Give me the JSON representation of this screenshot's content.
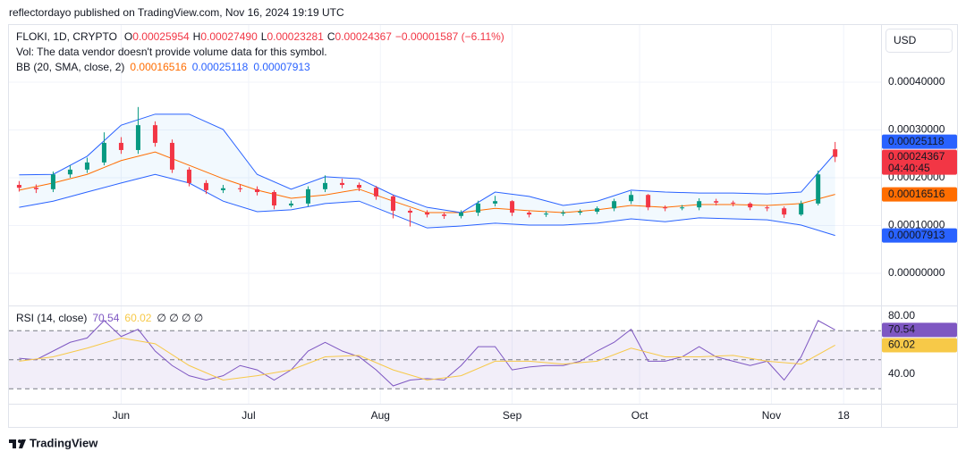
{
  "header": "reflectordayo published on TradingView.com, Nov 16, 2024 19:19 UTC",
  "currency_button": "USD",
  "footer": "TradingView",
  "chart_data": [
    {
      "type": "candlestick",
      "legend": {
        "symbol": "FLOKI, 1D, CRYPTO",
        "ohlc": [
          {
            "key": "O",
            "text": "0.00025954"
          },
          {
            "key": "H",
            "text": "0.00027490"
          },
          {
            "key": "L",
            "text": "0.00023281"
          },
          {
            "key": "C",
            "text": "0.00024367"
          }
        ],
        "change": "−0.00001587 (−6.11%)",
        "volume_note": "Vol: The data vendor doesn't provide volume data for this symbol.",
        "bb_title": "BB (20, SMA, close, 2)"
      },
      "countdown": "04:40:45",
      "up_color": "#089981",
      "down_color": "#f23645",
      "x": [
        2,
        6,
        10,
        14,
        18,
        22,
        26,
        30,
        34,
        38,
        42,
        46,
        50,
        54,
        58,
        62,
        66,
        70,
        74,
        78,
        82,
        86,
        90,
        94,
        98,
        102,
        106,
        110,
        114,
        118,
        122,
        126,
        130,
        134,
        138,
        142,
        146,
        150,
        154,
        158,
        162,
        166,
        170,
        174,
        178,
        182,
        186,
        190,
        194
      ],
      "open": [
        0.000185,
        0.000179,
        0.000176,
        0.000207,
        0.000217,
        0.000232,
        0.000273,
        0.000258,
        0.00031,
        0.000273,
        0.000217,
        0.000189,
        0.000174,
        0.000178,
        0.000176,
        0.00017,
        0.000142,
        0.000146,
        0.000176,
        0.000189,
        0.000185,
        0.000179,
        0.000161,
        0.000131,
        0.000127,
        0.000123,
        0.00012,
        0.000127,
        0.000146,
        0.000151,
        0.000127,
        0.000123,
        0.000125,
        0.000127,
        0.000129,
        0.000136,
        0.000151,
        0.000164,
        0.000138,
        0.000136,
        0.000138,
        0.000151,
        0.000148,
        0.000146,
        0.000138,
        0.000136,
        0.000123,
        0.000146,
        0.00025954
      ],
      "high": [
        0.000193,
        0.000186,
        0.000213,
        0.000226,
        0.000242,
        0.000295,
        0.000285,
        0.000348,
        0.000318,
        0.00028,
        0.000222,
        0.000195,
        0.000185,
        0.000186,
        0.000182,
        0.000174,
        0.000152,
        0.000182,
        0.000205,
        0.000198,
        0.00019,
        0.000183,
        0.000164,
        0.000136,
        0.000132,
        0.000128,
        0.000132,
        0.000152,
        0.000162,
        0.000153,
        0.00013,
        0.00013,
        0.000132,
        0.000134,
        0.00014,
        0.000156,
        0.000172,
        0.000166,
        0.000142,
        0.000143,
        0.000157,
        0.000156,
        0.000152,
        0.000149,
        0.000142,
        0.00014,
        0.000152,
        0.000215,
        0.0002749
      ],
      "low": [
        0.000171,
        0.000168,
        0.00017,
        0.0002,
        0.00021,
        0.000226,
        0.00025,
        0.00025,
        0.000265,
        0.00021,
        0.000182,
        0.000166,
        0.000168,
        0.00017,
        0.000163,
        0.000134,
        0.000138,
        0.00014,
        0.00017,
        0.000178,
        0.000172,
        0.000154,
        0.000115,
        9.8e-05,
        0.000117,
        0.000114,
        0.000115,
        0.00012,
        0.00014,
        0.00012,
        0.000117,
        0.000118,
        0.00012,
        0.000122,
        0.000124,
        0.00013,
        0.000145,
        0.000132,
        0.00013,
        0.000132,
        0.000132,
        0.000142,
        0.00014,
        0.000132,
        0.00013,
        0.000116,
        0.00012,
        0.000142,
        0.00023281
      ],
      "close": [
        0.000179,
        0.000176,
        0.000207,
        0.000217,
        0.000232,
        0.000273,
        0.000258,
        0.00031,
        0.000273,
        0.000217,
        0.000189,
        0.000174,
        0.000178,
        0.000176,
        0.00017,
        0.000142,
        0.000146,
        0.000176,
        0.000189,
        0.000185,
        0.000179,
        0.000161,
        0.000131,
        0.000127,
        0.000123,
        0.00012,
        0.000127,
        0.000146,
        0.000151,
        0.000127,
        0.000123,
        0.000125,
        0.000127,
        0.000129,
        0.000136,
        0.000151,
        0.000164,
        0.000138,
        0.000136,
        0.000138,
        0.000151,
        0.000148,
        0.000146,
        0.000138,
        0.000136,
        0.000123,
        0.000146,
        0.000207,
        0.00024367
      ],
      "bands": [
        {
          "color": "#ff6d00",
          "x": [
            2,
            10,
            18,
            26,
            34,
            42,
            50,
            58,
            66,
            74,
            82,
            90,
            98,
            106,
            114,
            122,
            130,
            138,
            146,
            154,
            162,
            170,
            178,
            186,
            194
          ],
          "values": [
            0.000174,
            0.000189,
            0.000207,
            0.000236,
            0.000254,
            0.000226,
            0.000198,
            0.000174,
            0.000157,
            0.000164,
            0.000176,
            0.000151,
            0.000127,
            0.000127,
            0.000136,
            0.000131,
            0.000127,
            0.000133,
            0.000142,
            0.000138,
            0.000144,
            0.000144,
            0.000142,
            0.000146,
            0.00016516
          ]
        },
        {
          "color": "#2962ff",
          "x": [
            2,
            10,
            18,
            26,
            34,
            42,
            50,
            58,
            66,
            74,
            82,
            90,
            98,
            106,
            114,
            122,
            130,
            138,
            146,
            154,
            162,
            170,
            178,
            186,
            194
          ],
          "values": [
            0.000206,
            0.000207,
            0.000245,
            0.00031,
            0.000333,
            0.000333,
            0.000301,
            0.000207,
            0.000176,
            0.000202,
            0.000198,
            0.000164,
            0.000138,
            0.000127,
            0.00017,
            0.000161,
            0.000142,
            0.000151,
            0.000174,
            0.00017,
            0.000168,
            0.000168,
            0.000166,
            0.00017,
            0.00025118
          ]
        },
        {
          "color": "#2962ff",
          "x": [
            2,
            10,
            18,
            26,
            34,
            42,
            50,
            58,
            66,
            74,
            82,
            90,
            98,
            106,
            114,
            122,
            130,
            138,
            146,
            154,
            162,
            170,
            178,
            186,
            194
          ],
          "values": [
            0.000138,
            0.000151,
            0.00017,
            0.000189,
            0.000207,
            0.000189,
            0.000151,
            0.000129,
            0.000133,
            0.000146,
            0.000151,
            0.000123,
            9.5e-05,
            9.9e-05,
            0.000105,
            0.000101,
            0.000101,
            0.000105,
            0.000114,
            0.000108,
            0.000116,
            0.000114,
            0.000112,
            0.000101,
            7.913e-05
          ]
        }
      ],
      "band_fill": "rgba(33,150,243,0.06)",
      "xlim": [
        -0.4,
        204.8
      ],
      "xticks": [
        {
          "value": 26,
          "label": "Jun"
        },
        {
          "value": 56,
          "label": "Jul"
        },
        {
          "value": 87,
          "label": "Aug"
        },
        {
          "value": 118,
          "label": "Sep"
        },
        {
          "value": 148,
          "label": "Oct"
        },
        {
          "value": 179,
          "label": "Nov"
        },
        {
          "value": 196,
          "label": "18"
        }
      ],
      "ylim": [
        -6.73e-05,
        0.0005196
      ],
      "yticks": [
        {
          "value": 0.0004,
          "label": "0.00040000"
        },
        {
          "value": 0.0003,
          "label": "0.00030000"
        },
        {
          "value": 0.0002,
          "label": "0.00020000"
        },
        {
          "value": 0.0001,
          "label": "0.00010000"
        },
        {
          "value": 0,
          "label": "0.00000000"
        }
      ],
      "grid": true
    },
    {
      "type": "line",
      "title": "RSI (14, close)",
      "extra": "∅ ∅ ∅ ∅",
      "series": [
        {
          "color": "#7e57c2",
          "x": [
            2,
            6,
            10,
            14,
            18,
            22,
            26,
            30,
            34,
            38,
            42,
            46,
            50,
            54,
            58,
            62,
            66,
            70,
            74,
            78,
            82,
            86,
            90,
            94,
            98,
            102,
            106,
            110,
            114,
            118,
            122,
            126,
            130,
            134,
            138,
            142,
            146,
            150,
            154,
            158,
            162,
            166,
            170,
            174,
            178,
            182,
            186,
            190,
            194
          ],
          "values": [
            51,
            50,
            56,
            62,
            65,
            77,
            66,
            71,
            56,
            46,
            39,
            36,
            39,
            46,
            43,
            36,
            43,
            56,
            62,
            56,
            52,
            43,
            32,
            36,
            37,
            36,
            46,
            59,
            59,
            43,
            45,
            46,
            46,
            49,
            56,
            62,
            71,
            49,
            49,
            52,
            59,
            52,
            49,
            46,
            49,
            36,
            52,
            77,
            70.54
          ]
        },
        {
          "color": "#f7c948",
          "x": [
            2,
            10,
            18,
            26,
            34,
            42,
            50,
            58,
            66,
            74,
            82,
            90,
            98,
            106,
            114,
            122,
            130,
            138,
            146,
            154,
            162,
            170,
            178,
            186,
            194
          ],
          "values": [
            49,
            52,
            58,
            65,
            61,
            46,
            36,
            39,
            43,
            52,
            53,
            43,
            36,
            39,
            49,
            49,
            47,
            49,
            58,
            52,
            52,
            53,
            49,
            47,
            60.02
          ]
        }
      ],
      "levels": [
        70,
        50,
        30
      ],
      "band_fill": "rgba(126,87,194,0.1)",
      "xlim": [
        -0.4,
        204.8
      ],
      "ylim": [
        19.69,
        86.77
      ],
      "yticks": [
        {
          "value": 80,
          "label": "80.00"
        },
        {
          "value": 40,
          "label": "40.00"
        }
      ]
    }
  ]
}
